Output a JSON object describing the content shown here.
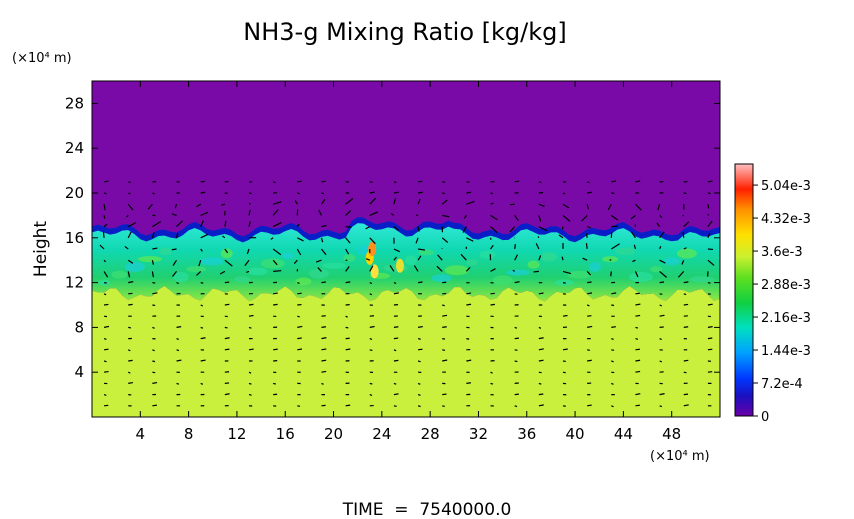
{
  "chart_data": {
    "type": "heatmap",
    "title": "NH3-g Mixing Ratio [kg/kg]",
    "ylabel": "Height",
    "y_unit": "(×10⁴ m)",
    "x_unit": "(×10⁴ m)",
    "footer": "TIME  =  7540000.0",
    "xlim": [
      0,
      52
    ],
    "ylim": [
      0,
      30
    ],
    "x_ticks": [
      "4",
      "8",
      "12",
      "16",
      "20",
      "24",
      "28",
      "32",
      "36",
      "40",
      "44",
      "48"
    ],
    "x_tick_values": [
      4,
      8,
      12,
      16,
      20,
      24,
      28,
      32,
      36,
      40,
      44,
      48
    ],
    "y_ticks": [
      "4",
      "8",
      "12",
      "16",
      "20",
      "24",
      "28"
    ],
    "y_tick_values": [
      4,
      8,
      12,
      16,
      20,
      24,
      28
    ],
    "colorbar": {
      "min": 0,
      "max": 0.0055,
      "labels": [
        "5.04e-3",
        "4.32e-3",
        "3.6e-3",
        "2.88e-3",
        "2.16e-3",
        "1.44e-3",
        "7.2e-4",
        "0"
      ],
      "label_values": [
        0.00504,
        0.00432,
        0.0036,
        0.00288,
        0.00216,
        0.00144,
        0.00072,
        0
      ]
    },
    "field": {
      "lower_value": 0.0033,
      "lower_top_height": 11,
      "band_value": 0.0023,
      "cloud_top_height": 16.5,
      "upper_value": 0
    },
    "colors": {
      "background_upper": "#7a0aa8",
      "lower_layer": "#c8f03c",
      "band": "#1edc8c",
      "top_edge": "#0a1ec8"
    }
  }
}
